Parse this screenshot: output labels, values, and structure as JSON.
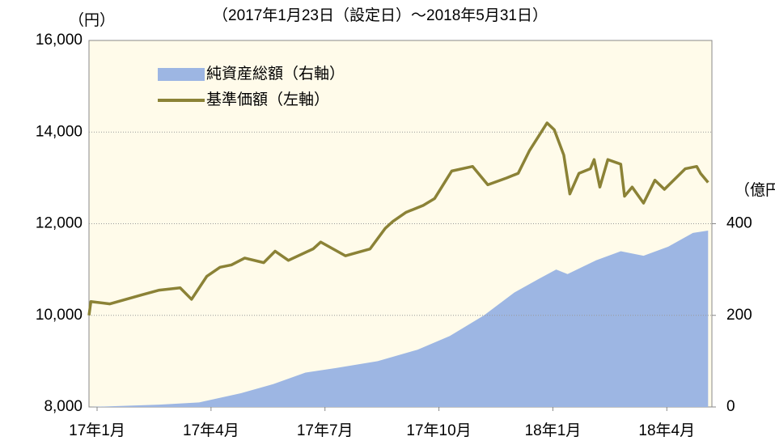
{
  "chart_data": {
    "type": "line",
    "title": "（2017年1月23日（設定日）～2018年5月31日）",
    "y_label": "（円）",
    "y2_label": "（億円）",
    "xlim": [
      0,
      16.4
    ],
    "xticks": [
      {
        "value": 0,
        "label": "17年1月"
      },
      {
        "value": 3,
        "label": "17年4月"
      },
      {
        "value": 6,
        "label": "17年7月"
      },
      {
        "value": 9,
        "label": "17年10月"
      },
      {
        "value": 12,
        "label": "18年1月"
      },
      {
        "value": 15,
        "label": "18年4月"
      }
    ],
    "ylim": [
      8000,
      16000
    ],
    "yticks": [
      {
        "value": 8000,
        "label": "8,000"
      },
      {
        "value": 10000,
        "label": "10,000"
      },
      {
        "value": 12000,
        "label": "12,000"
      },
      {
        "value": 14000,
        "label": "14,000"
      },
      {
        "value": 16000,
        "label": "16,000"
      }
    ],
    "y2lim": [
      0,
      800
    ],
    "y2ticks": [
      0,
      200,
      400
    ],
    "grid": true,
    "legend": "upper left",
    "series": [
      {
        "name": "純資産総額（右軸）",
        "kind": "area",
        "axis": "y2",
        "color": "#9db6e3",
        "x": [
          0,
          1.85,
          2.9,
          4.0,
          4.85,
          5.7,
          6.5,
          7.6,
          8.65,
          9.5,
          10.4,
          11.2,
          11.85,
          12.3,
          12.6,
          13.35,
          14.0,
          14.6,
          15.25,
          15.9,
          16.3
        ],
        "values": [
          0,
          5,
          10,
          30,
          50,
          75,
          85,
          100,
          125,
          155,
          200,
          250,
          280,
          300,
          290,
          320,
          340,
          330,
          350,
          380,
          385
        ]
      },
      {
        "name": "基準価額（左軸）",
        "kind": "line",
        "axis": "y",
        "color": "#8b8236",
        "x": [
          0,
          0.05,
          0.55,
          1.4,
          1.85,
          2.4,
          2.7,
          3.1,
          3.45,
          3.75,
          4.1,
          4.6,
          4.9,
          5.25,
          5.9,
          6.1,
          6.75,
          7.4,
          7.8,
          8.0,
          8.35,
          8.8,
          9.1,
          9.4,
          9.55,
          10.1,
          10.5,
          11.0,
          11.3,
          11.6,
          12.06,
          12.25,
          12.5,
          12.66,
          12.9,
          13.2,
          13.3,
          13.45,
          13.66,
          14.0,
          14.1,
          14.3,
          14.6,
          14.9,
          15.15,
          15.7,
          16.0,
          16.1,
          16.3
        ],
        "values": [
          10000,
          10300,
          10250,
          10450,
          10550,
          10600,
          10350,
          10850,
          11050,
          11100,
          11250,
          11150,
          11400,
          11200,
          11450,
          11600,
          11300,
          11450,
          11900,
          12050,
          12250,
          12400,
          12550,
          12950,
          13150,
          13250,
          12850,
          13000,
          13100,
          13600,
          14200,
          14050,
          13500,
          12650,
          13100,
          13200,
          13400,
          12800,
          13400,
          13300,
          12600,
          12800,
          12450,
          12950,
          12750,
          13200,
          13250,
          13100,
          12900
        ]
      }
    ]
  }
}
